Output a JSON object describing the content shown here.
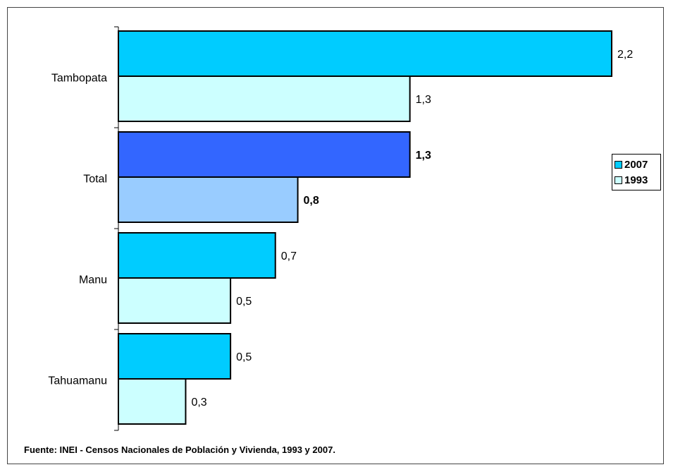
{
  "chart_data": {
    "type": "bar",
    "orientation": "horizontal",
    "categories": [
      "Tambopata",
      "Total",
      "Manu",
      "Tahuamanu"
    ],
    "series": [
      {
        "name": "2007",
        "values": [
          2.2,
          1.3,
          0.7,
          0.5
        ],
        "labels": [
          "2,2",
          "1,3",
          "0,7",
          "0,5"
        ]
      },
      {
        "name": "1993",
        "values": [
          1.3,
          0.8,
          0.5,
          0.3
        ],
        "labels": [
          "1,3",
          "0,8",
          "0,5",
          "0,3"
        ]
      }
    ],
    "highlight_category": "Total",
    "colors": {
      "2007": "#00CCFF",
      "1993": "#CCFFFF",
      "highlight_2007": "#3366FF",
      "highlight_1993": "#99CCFF"
    },
    "xlim": [
      0,
      2.2
    ],
    "grid": false,
    "legend_position": "right"
  },
  "legend": {
    "items": [
      "2007",
      "1993"
    ]
  },
  "source_note": "Fuente: INEI - Censos Nacionales de Población y Vivienda, 1993 y 2007."
}
